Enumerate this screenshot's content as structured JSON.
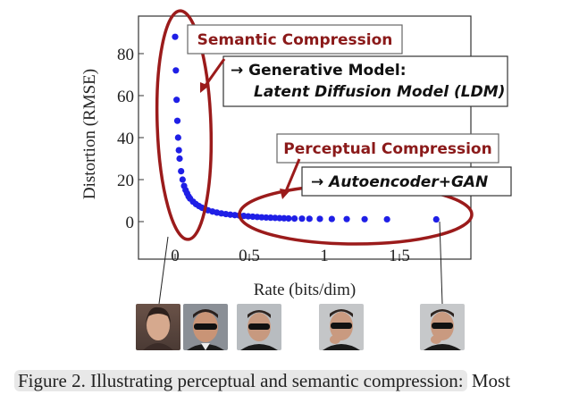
{
  "chart_data": {
    "type": "scatter",
    "xlabel": "Rate (bits/dim)",
    "ylabel": "Distortion (RMSE)",
    "xlim": [
      -0.05,
      1.85
    ],
    "ylim": [
      -5,
      95
    ],
    "xticks": [
      "0",
      "0.5",
      "1",
      "1.5"
    ],
    "xtick_values": [
      0,
      0.5,
      1,
      1.5
    ],
    "yticks": [
      "0",
      "20",
      "40",
      "60",
      "80"
    ],
    "ytick_values": [
      0,
      20,
      40,
      60,
      80
    ],
    "series": [
      {
        "color": "#1f1fe6",
        "x": [
          0.0,
          0.005,
          0.01,
          0.015,
          0.02,
          0.025,
          0.03,
          0.04,
          0.05,
          0.06,
          0.07,
          0.08,
          0.09,
          0.1,
          0.12,
          0.14,
          0.16,
          0.18,
          0.2,
          0.22,
          0.25,
          0.28,
          0.31,
          0.34,
          0.37,
          0.4,
          0.43,
          0.46,
          0.49,
          0.52,
          0.55,
          0.58,
          0.61,
          0.64,
          0.67,
          0.7,
          0.73,
          0.76,
          0.8,
          0.85,
          0.9,
          0.97,
          1.05,
          1.15,
          1.27,
          1.42,
          1.75
        ],
        "y": [
          88,
          72,
          58,
          48,
          40,
          34,
          30,
          24,
          20,
          17,
          15,
          13.5,
          12,
          11,
          9.5,
          8.3,
          7.4,
          6.6,
          6,
          5.4,
          4.8,
          4.3,
          3.9,
          3.6,
          3.3,
          3.1,
          2.9,
          2.7,
          2.5,
          2.35,
          2.2,
          2.05,
          1.95,
          1.85,
          1.75,
          1.65,
          1.58,
          1.5,
          1.45,
          1.4,
          1.35,
          1.3,
          1.25,
          1.2,
          1.15,
          1.1,
          1.05
        ]
      }
    ]
  },
  "annotations": {
    "semantic_title": "Semantic Compression",
    "semantic_arrow": "→ Generative Model:",
    "semantic_model": "Latent Diffusion Model (LDM)",
    "perceptual_title": "Perceptual Compression",
    "perceptual_model": "→ Autoencoder+GAN",
    "ellipse_color": "#9b1b1b"
  },
  "caption": {
    "highlighted": "Figure 2.  Illustrating perceptual and semantic compression:",
    "rest": " Most"
  }
}
